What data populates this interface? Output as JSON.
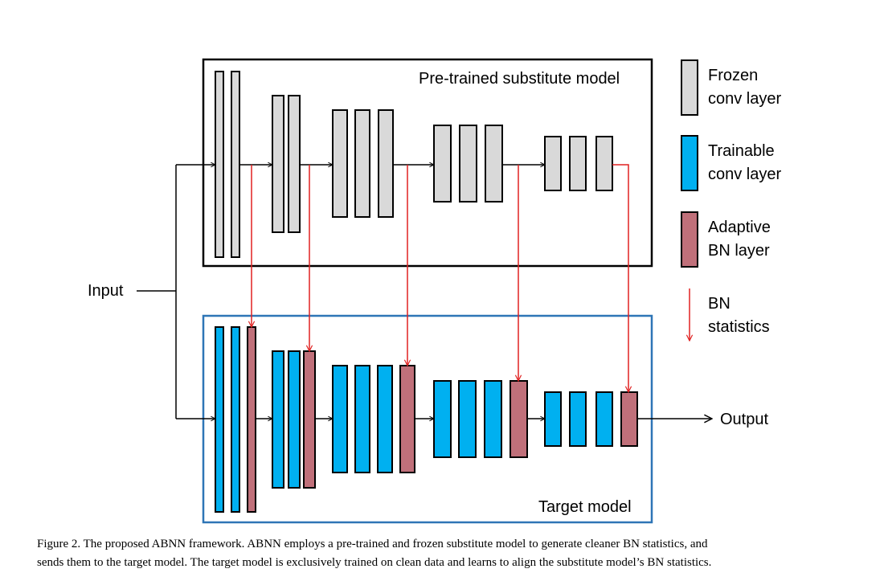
{
  "diagram": {
    "substitute_title": "Pre-trained substitute model",
    "target_title": "Target model",
    "input_label": "Input",
    "output_label": "Output"
  },
  "legend": {
    "frozen": {
      "line1": "Frozen",
      "line2": "conv layer",
      "color": "#d9d9d9"
    },
    "trainable": {
      "line1": "Trainable",
      "line2": "conv layer",
      "color": "#00b0f0"
    },
    "adaptive": {
      "line1": "Adaptive",
      "line2": "BN layer",
      "color": "#c0707a"
    },
    "bn_stats": {
      "line1": "BN",
      "line2": "statistics",
      "color": "#e02020"
    }
  },
  "caption": {
    "line1": "Figure 2. The proposed ABNN framework. ABNN employs a pre-trained and frozen substitute model to generate cleaner BN statistics, and",
    "line2": "sends them to the target model. The target model is exclusively trained on clean data and learns to align the substitute model’s BN statistics."
  }
}
